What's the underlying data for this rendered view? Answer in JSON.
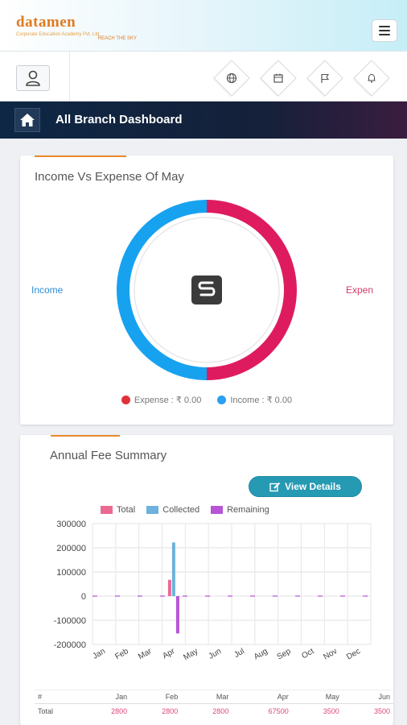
{
  "brand": {
    "name": "datamen",
    "subtitle": "Corporate Education Academy Pvt. Ltd.",
    "tagline": "REACH THE SKY"
  },
  "header": {
    "page_title": "All Branch Dashboard",
    "icons": [
      "globe-icon",
      "calendar-icon",
      "flag-icon",
      "bell-icon"
    ]
  },
  "income_card": {
    "title": "Income Vs Expense Of May",
    "side_income": "Income",
    "side_expense": "Expen",
    "legend": [
      {
        "label": "Expense : ₹ 0.00",
        "color": "#e0313b"
      },
      {
        "label": "Income : ₹ 0.00",
        "color": "#2aa0ef"
      }
    ],
    "colors": {
      "income": "#17a2f0",
      "expense": "#df1b60"
    }
  },
  "fee_card": {
    "title": "Annual Fee Summary",
    "view_details": "View Details"
  },
  "chart_data": [
    {
      "type": "pie",
      "title": "Income Vs Expense Of May",
      "labels": [
        "Expense",
        "Income"
      ],
      "values": [
        0.5,
        0.5
      ],
      "colors": [
        "#df1b60",
        "#17a2f0"
      ]
    },
    {
      "type": "bar",
      "title": "Annual Fee Summary",
      "categories": [
        "Jan",
        "Feb",
        "Mar",
        "Apr",
        "May",
        "Jun",
        "Jul",
        "Aug",
        "Sep",
        "Oct",
        "Nov",
        "Dec"
      ],
      "ylim": [
        -200000,
        300000
      ],
      "yticks": [
        300000,
        200000,
        100000,
        0,
        -100000,
        -200000
      ],
      "ytick_labels": [
        "300000",
        "200000",
        "100000",
        "0",
        "-100000",
        "-200000"
      ],
      "series": [
        {
          "name": "Total",
          "color": "#ea6a92",
          "values": [
            2800,
            2800,
            2800,
            67500,
            3500,
            3500,
            0,
            0,
            0,
            0,
            0,
            0
          ]
        },
        {
          "name": "Collected",
          "color": "#6cb2dc",
          "values": [
            0,
            0,
            0,
            222000,
            0,
            0,
            0,
            0,
            0,
            0,
            0,
            0
          ]
        },
        {
          "name": "Remaining",
          "color": "#b855d6",
          "values": [
            2800,
            2800,
            2800,
            -154500,
            3500,
            3500,
            0,
            0,
            0,
            0,
            0,
            0
          ]
        }
      ],
      "grid": true,
      "legend_position": "top"
    }
  ],
  "fee_table": {
    "headers": [
      "#",
      "Jan",
      "Feb",
      "Mar",
      "Apr",
      "May",
      "Jun"
    ],
    "rows": [
      {
        "label": "Total",
        "values": [
          "2800",
          "2800",
          "2800",
          "67500",
          "3500",
          "3500"
        ]
      }
    ]
  }
}
